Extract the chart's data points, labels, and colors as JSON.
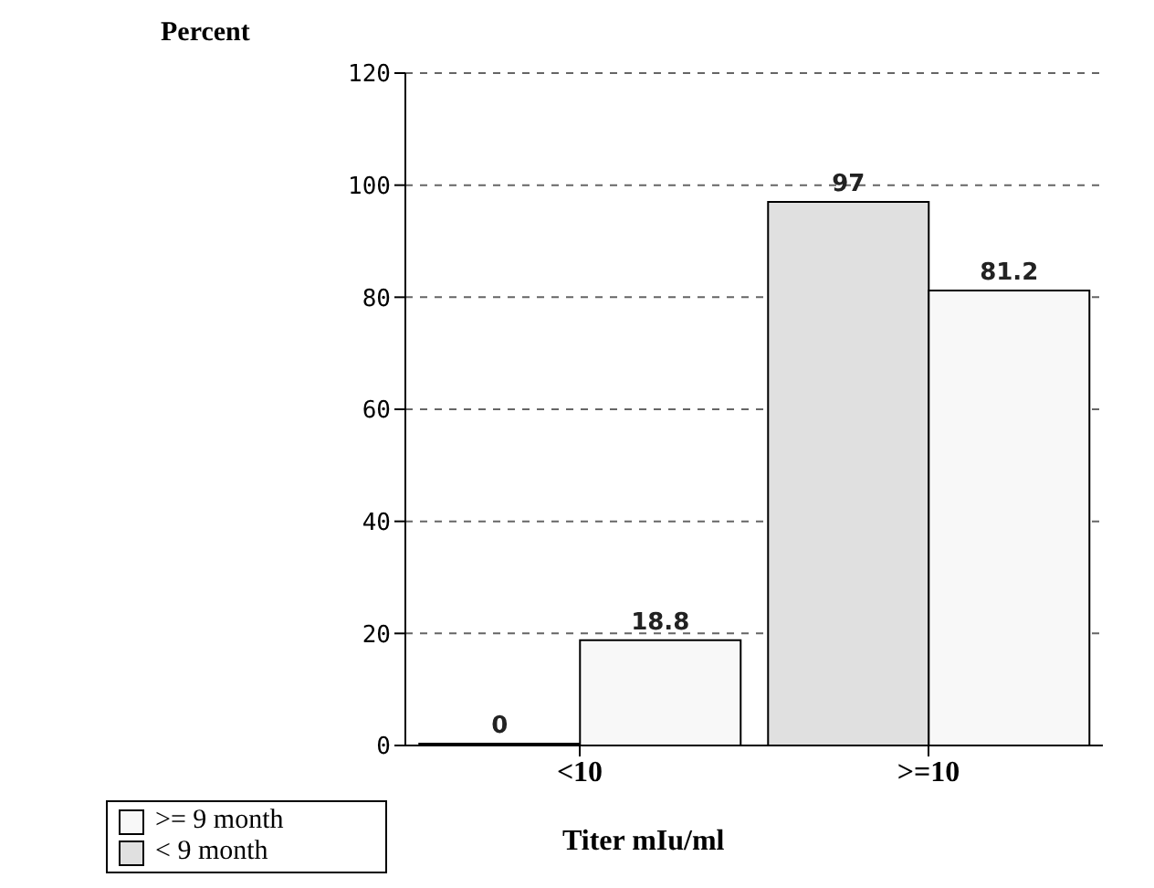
{
  "chart_data": {
    "type": "bar",
    "ylabel": "Percent",
    "xlabel": "Titer mIu/ml",
    "categories": [
      "<10",
      ">=10"
    ],
    "series": [
      {
        "name": "< 9 month",
        "color": "#e0e0e0",
        "values": [
          0,
          97
        ]
      },
      {
        "name": ">= 9 month",
        "color": "#f8f8f8",
        "values": [
          18.8,
          81.2
        ]
      }
    ],
    "ylim": [
      0,
      120
    ],
    "yticks": [
      0,
      20,
      40,
      60,
      80,
      100,
      120
    ],
    "grid": "y",
    "legend": "bottom left",
    "data_labels": true
  }
}
